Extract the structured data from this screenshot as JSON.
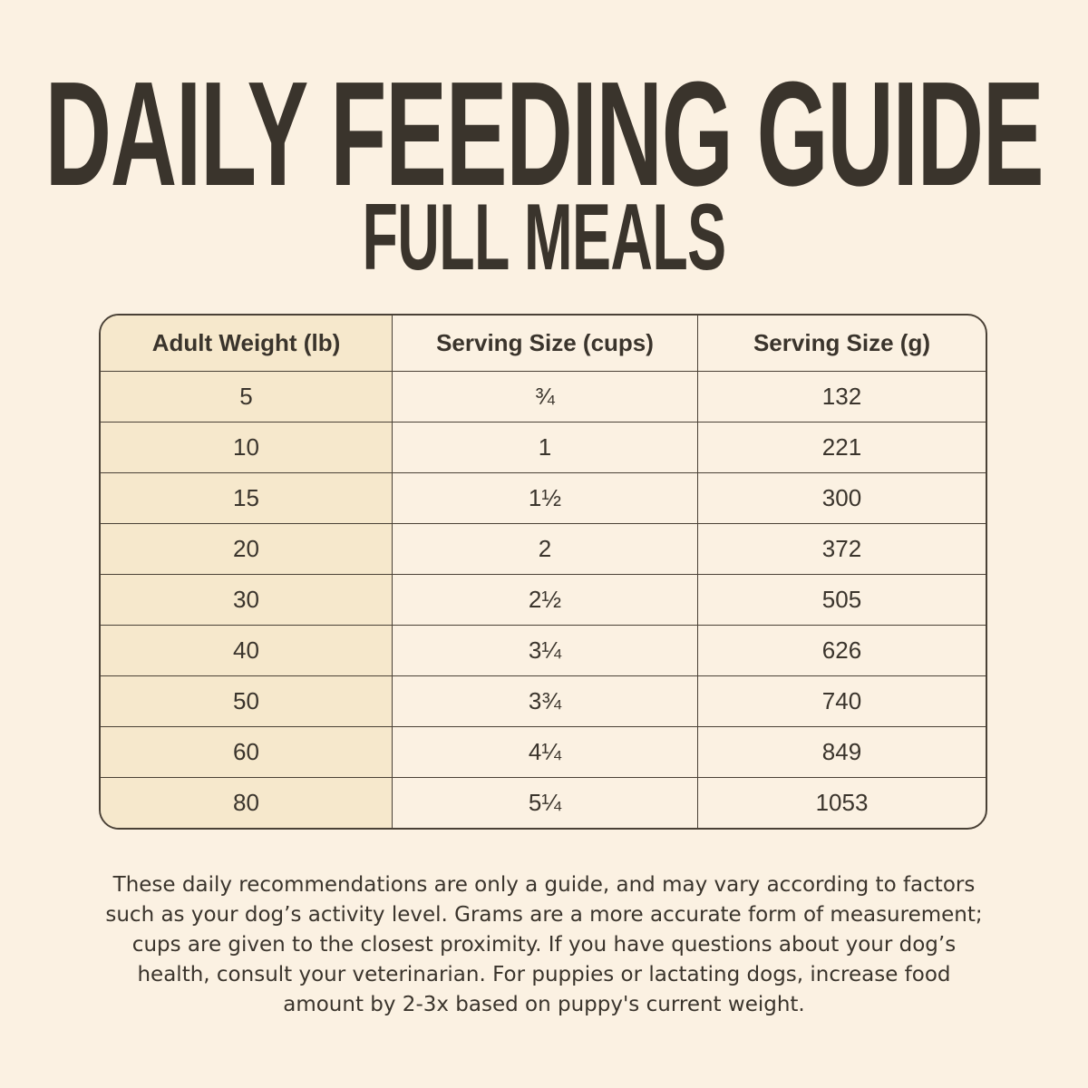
{
  "title": "DAILY FEEDING GUIDE",
  "subtitle": "FULL MEALS",
  "table": {
    "headers": [
      "Adult Weight (lb)",
      "Serving Size (cups)",
      "Serving Size (g)"
    ],
    "rows": [
      [
        "5",
        "¾",
        "132"
      ],
      [
        "10",
        "1",
        "221"
      ],
      [
        "15",
        "1½",
        "300"
      ],
      [
        "20",
        "2",
        "372"
      ],
      [
        "30",
        "2½",
        "505"
      ],
      [
        "40",
        "3¼",
        "626"
      ],
      [
        "50",
        "3¾",
        "740"
      ],
      [
        "60",
        "4¼",
        "849"
      ],
      [
        "80",
        "5¼",
        "1053"
      ]
    ]
  },
  "note": {
    "lines": [
      "These daily recommendations are only a guide, and may vary according to factors",
      "such as your dog’s activity level. Grams are a more accurate form of measurement;",
      "cups are given to the closest proximity. If you have questions about your dog’s",
      "health, consult your veterinarian. For puppies or lactating dogs, increase food",
      "amount by 2-3x based on puppy's current weight."
    ]
  }
}
